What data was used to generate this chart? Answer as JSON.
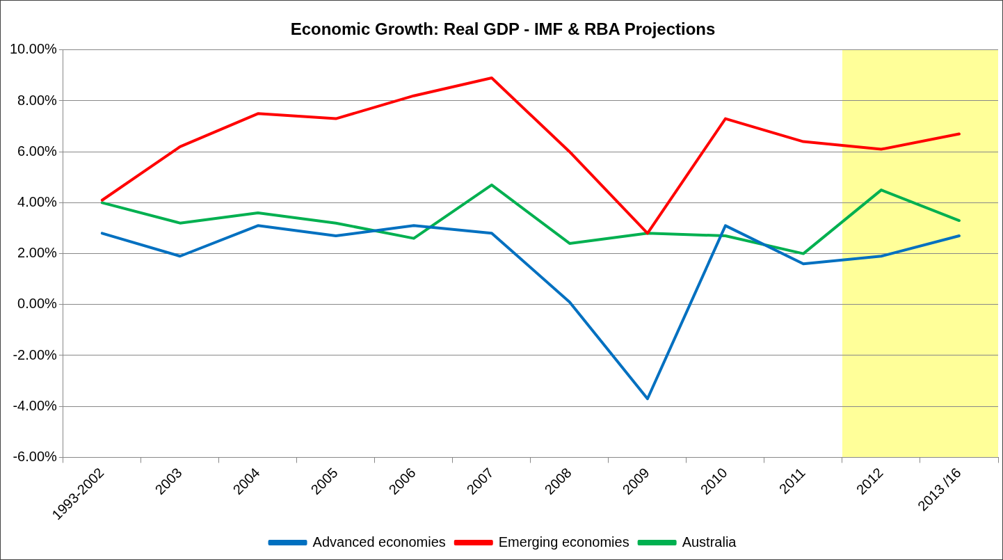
{
  "chart_data": {
    "type": "line",
    "title": "Economic Growth: Real GDP - IMF & RBA Projections",
    "categories": [
      "1993-2002",
      "2003",
      "2004",
      "2005",
      "2006",
      "2007",
      "2008",
      "2009",
      "2010",
      "2011",
      "2012",
      "2013 /16"
    ],
    "series": [
      {
        "name": "Advanced economies",
        "color": "#0070c0",
        "values": [
          2.8,
          1.9,
          3.1,
          2.7,
          3.1,
          2.8,
          0.1,
          -3.7,
          3.1,
          1.6,
          1.9,
          2.7
        ]
      },
      {
        "name": "Emerging economies",
        "color": "#ff0000",
        "values": [
          4.1,
          6.2,
          7.5,
          7.3,
          8.2,
          8.9,
          6.0,
          2.8,
          7.3,
          6.4,
          6.1,
          6.7
        ]
      },
      {
        "name": "Australia",
        "color": "#00b050",
        "values": [
          4.0,
          3.2,
          3.6,
          3.2,
          2.6,
          4.7,
          2.4,
          2.8,
          2.7,
          2.0,
          4.5,
          3.3
        ]
      }
    ],
    "ylim": [
      -6,
      10
    ],
    "yticks": [
      {
        "value": -6,
        "label": "-6.00%"
      },
      {
        "value": -4,
        "label": "-4.00%"
      },
      {
        "value": -2,
        "label": "-2.00%"
      },
      {
        "value": 0,
        "label": "0.00%"
      },
      {
        "value": 2,
        "label": "2.00%"
      },
      {
        "value": 4,
        "label": "4.00%"
      },
      {
        "value": 6,
        "label": "6.00%"
      },
      {
        "value": 8,
        "label": "8.00%"
      },
      {
        "value": 10,
        "label": "10.00%"
      }
    ],
    "bands": [
      {
        "axis": "x",
        "from": "2012",
        "to": "2013 /16",
        "color": "#ffff99"
      }
    ],
    "grid": "y",
    "legend": "bottom",
    "marker": "none",
    "line_style": "solid"
  }
}
